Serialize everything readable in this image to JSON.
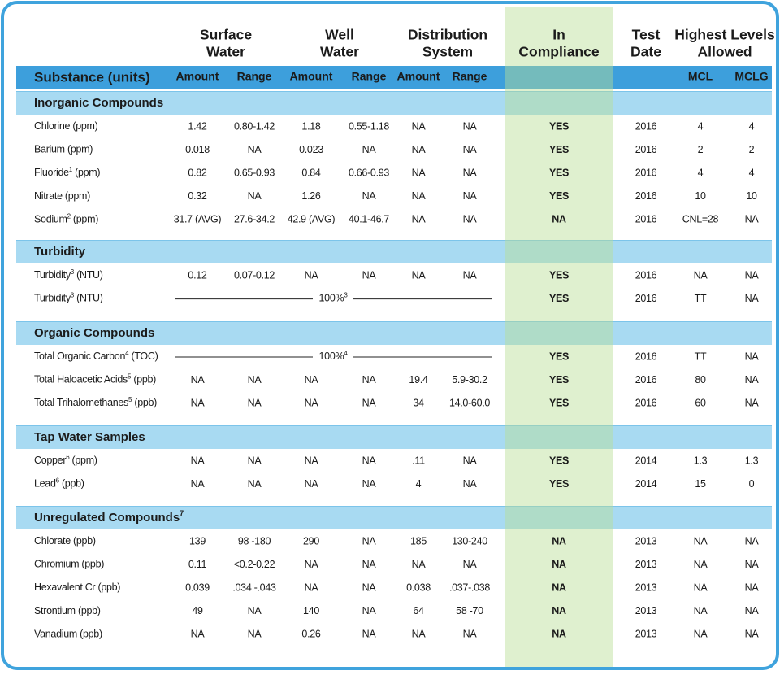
{
  "header": {
    "groups": [
      {
        "lines": [
          "Surface",
          "Water"
        ]
      },
      {
        "lines": [
          "Well",
          "Water"
        ]
      },
      {
        "lines": [
          "Distribution",
          "System"
        ]
      },
      {
        "lines": [
          "In",
          "Compliance"
        ]
      },
      {
        "lines": [
          "Test",
          "Date"
        ]
      },
      {
        "lines": [
          "Highest Levels",
          "Allowed"
        ]
      }
    ],
    "columns": {
      "substance": "Substance (units)",
      "sub": [
        "Amount",
        "Range",
        "Amount",
        "Range",
        "Amount",
        "Range",
        "MCL",
        "MCLG"
      ]
    }
  },
  "sections": [
    {
      "title": "Inorganic Compounds",
      "rows": [
        {
          "name": "Chlorine",
          "unit": "(ppm)",
          "cells": [
            "1.42",
            "0.80-1.42",
            "1.18",
            "0.55-1.18",
            "NA",
            "NA",
            "YES",
            "2016",
            "4",
            "4"
          ]
        },
        {
          "name": "Barium",
          "unit": "(ppm)",
          "cells": [
            "0.018",
            "NA",
            "0.023",
            "NA",
            "NA",
            "NA",
            "YES",
            "2016",
            "2",
            "2"
          ]
        },
        {
          "name": "Fluoride",
          "note": "1",
          "unit": "(ppm)",
          "cells": [
            "0.82",
            "0.65-0.93",
            "0.84",
            "0.66-0.93",
            "NA",
            "NA",
            "YES",
            "2016",
            "4",
            "4"
          ]
        },
        {
          "name": "Nitrate",
          "unit": "(ppm)",
          "cells": [
            "0.32",
            "NA",
            "1.26",
            "NA",
            "NA",
            "NA",
            "YES",
            "2016",
            "10",
            "10"
          ]
        },
        {
          "name": "Sodium",
          "note": "2",
          "unit": "(ppm)",
          "cells": [
            "31.7 (AVG)",
            "27.6-34.2",
            "42.9 (AVG)",
            "40.1-46.7",
            "NA",
            "NA",
            "NA",
            "2016",
            "CNL=28",
            "NA"
          ]
        }
      ]
    },
    {
      "title": "Turbidity",
      "rows": [
        {
          "name": "Turbidity",
          "note": "3",
          "unit": "(NTU)",
          "cells": [
            "0.12",
            "0.07-0.12",
            "NA",
            "NA",
            "NA",
            "NA",
            "YES",
            "2016",
            "NA",
            "NA"
          ]
        },
        {
          "name": "Turbidity",
          "note": "3",
          "unit": "(NTU)",
          "span": {
            "text": "100%",
            "note": "3"
          },
          "cells": [
            "YES",
            "2016",
            "TT",
            "NA"
          ]
        }
      ]
    },
    {
      "title": "Organic Compounds",
      "rows": [
        {
          "name": "Total Organic Carbon",
          "note": "4",
          "unit": "(TOC)",
          "span": {
            "text": "100%",
            "note": "4"
          },
          "cells": [
            "YES",
            "2016",
            "TT",
            "NA"
          ]
        },
        {
          "name": "Total Haloacetic Acids",
          "note": "5",
          "unit": "(ppb)",
          "cells": [
            "NA",
            "NA",
            "NA",
            "NA",
            "19.4",
            "5.9-30.2",
            "YES",
            "2016",
            "80",
            "NA"
          ]
        },
        {
          "name": "Total Trihalomethanes",
          "note": "5",
          "unit": "(ppb)",
          "cells": [
            "NA",
            "NA",
            "NA",
            "NA",
            "34",
            "14.0-60.0",
            "YES",
            "2016",
            "60",
            "NA"
          ]
        }
      ]
    },
    {
      "title": "Tap Water Samples",
      "rows": [
        {
          "name": "Copper",
          "note": "6",
          "unit": "(ppm)",
          "cells": [
            "NA",
            "NA",
            "NA",
            "NA",
            ".11",
            "NA",
            "YES",
            "2014",
            "1.3",
            "1.3"
          ]
        },
        {
          "name": "Lead",
          "note": "6",
          "unit": "(ppb)",
          "cells": [
            "NA",
            "NA",
            "NA",
            "NA",
            "4",
            "NA",
            "YES",
            "2014",
            "15",
            "0"
          ]
        }
      ]
    },
    {
      "title": "Unregulated Compounds",
      "note": "7",
      "rows": [
        {
          "name": "Chlorate",
          "unit": "(ppb)",
          "cells": [
            "139",
            "98 -180",
            "290",
            "NA",
            "185",
            "130-240",
            "NA",
            "2013",
            "NA",
            "NA"
          ]
        },
        {
          "name": "Chromium",
          "unit": "(ppb)",
          "cells": [
            "0.11",
            "<0.2-0.22",
            "NA",
            "NA",
            "NA",
            "NA",
            "NA",
            "2013",
            "NA",
            "NA"
          ]
        },
        {
          "name": "Hexavalent Cr",
          "unit": "(ppb)",
          "cells": [
            "0.039",
            ".034 -.043",
            "NA",
            "NA",
            "0.038",
            ".037-.038",
            "NA",
            "2013",
            "NA",
            "NA"
          ]
        },
        {
          "name": "Strontium",
          "unit": "(ppb)",
          "cells": [
            "49",
            "NA",
            "140",
            "NA",
            "64",
            "58 -70",
            "NA",
            "2013",
            "NA",
            "NA"
          ]
        },
        {
          "name": "Vanadium",
          "unit": "(ppb)",
          "cells": [
            "NA",
            "NA",
            "0.26",
            "NA",
            "NA",
            "NA",
            "NA",
            "2013",
            "NA",
            "NA"
          ]
        }
      ]
    }
  ]
}
